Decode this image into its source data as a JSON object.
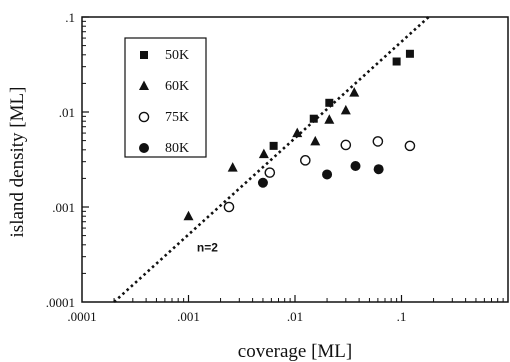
{
  "chart_data": {
    "type": "scatter",
    "title": "",
    "xlabel": "coverage [ML]",
    "ylabel": "island density [ML]",
    "x_scale": "log",
    "y_scale": "log",
    "xlim": [
      0.0001,
      1
    ],
    "ylim": [
      0.0001,
      0.1
    ],
    "x_ticks": [
      0.0001,
      0.001,
      0.01,
      0.1
    ],
    "x_tick_labels": [
      ".0001",
      ".001",
      ".01",
      ".1"
    ],
    "y_ticks": [
      0.0001,
      0.001,
      0.01,
      0.1
    ],
    "y_tick_labels": [
      ".0001",
      ".001",
      ".01",
      ".1"
    ],
    "grid": false,
    "legend_position": "top-left",
    "series": [
      {
        "name": "50K",
        "marker": "filled-square",
        "points": [
          {
            "x": 0.0063,
            "y": 0.0044
          },
          {
            "x": 0.015,
            "y": 0.0085
          },
          {
            "x": 0.021,
            "y": 0.0125
          },
          {
            "x": 0.09,
            "y": 0.034
          },
          {
            "x": 0.12,
            "y": 0.041
          }
        ]
      },
      {
        "name": "60K",
        "marker": "filled-triangle",
        "points": [
          {
            "x": 0.001,
            "y": 0.0008
          },
          {
            "x": 0.0026,
            "y": 0.0026
          },
          {
            "x": 0.0051,
            "y": 0.0036
          },
          {
            "x": 0.0105,
            "y": 0.006
          },
          {
            "x": 0.0155,
            "y": 0.0049
          },
          {
            "x": 0.021,
            "y": 0.0083
          },
          {
            "x": 0.03,
            "y": 0.0104
          },
          {
            "x": 0.036,
            "y": 0.016
          }
        ]
      },
      {
        "name": "75K",
        "marker": "open-circle",
        "points": [
          {
            "x": 0.0024,
            "y": 0.001
          },
          {
            "x": 0.0058,
            "y": 0.0023
          },
          {
            "x": 0.0125,
            "y": 0.0031
          },
          {
            "x": 0.03,
            "y": 0.0045
          },
          {
            "x": 0.06,
            "y": 0.0049
          },
          {
            "x": 0.12,
            "y": 0.0044
          }
        ]
      },
      {
        "name": "80K",
        "marker": "filled-circle",
        "points": [
          {
            "x": 0.005,
            "y": 0.0018
          },
          {
            "x": 0.02,
            "y": 0.0022
          },
          {
            "x": 0.037,
            "y": 0.0027
          },
          {
            "x": 0.061,
            "y": 0.0025
          }
        ]
      }
    ],
    "reference_line": {
      "label": "n=2",
      "style": "dotted",
      "points": [
        {
          "x": 0.0002,
          "y": 0.0001
        },
        {
          "x": 0.18,
          "y": 0.1
        }
      ]
    },
    "annotation": {
      "text": "n=2",
      "x": 0.0012,
      "y": 0.00034
    }
  }
}
